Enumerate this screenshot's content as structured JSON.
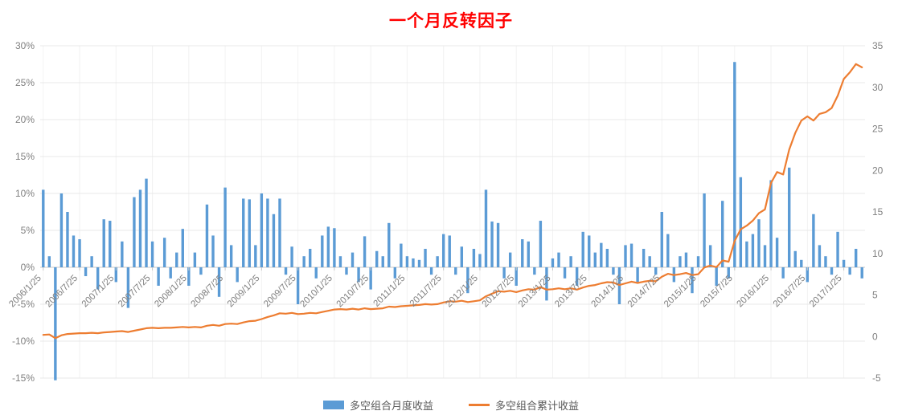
{
  "title": "一个月反转因子",
  "colors": {
    "bar": "#5B9BD5",
    "line": "#ED7D31",
    "title": "#FF0000",
    "axis_text": "#7F7F7F",
    "grid": "#E8E8E8",
    "vgrid": "#F2F2F2",
    "zero_line": "#C9C9C9",
    "legend_text": "#595959"
  },
  "chart_data": {
    "type": "bar+line",
    "title": "一个月反转因子",
    "x_tick_labels": [
      "2006/1/25",
      "2006/7/25",
      "2007/1/25",
      "2007/7/25",
      "2008/1/25",
      "2008/7/25",
      "2009/1/25",
      "2009/7/25",
      "2010/1/25",
      "2010/7/25",
      "2011/1/25",
      "2011/7/25",
      "2012/1/25",
      "2012/7/25",
      "2013/1/25",
      "2013/7/25",
      "2014/1/25",
      "2014/7/25",
      "2015/1/25",
      "2015/7/25",
      "2016/1/25",
      "2016/7/25",
      "2017/1/25"
    ],
    "x_tick_every_n_months": 6,
    "n_points": 136,
    "y_left": {
      "min": -15,
      "max": 30,
      "tick_values": [
        30,
        25,
        20,
        15,
        10,
        5,
        0,
        -5,
        -10,
        -15
      ],
      "tick_labels": [
        "30%",
        "25%",
        "20%",
        "15%",
        "10%",
        "5%",
        "0%",
        "-5%",
        "-10%",
        "-15%"
      ]
    },
    "y_right": {
      "min": -5,
      "max": 35,
      "tick_values": [
        35,
        30,
        25,
        20,
        15,
        10,
        5,
        0,
        -5
      ],
      "tick_labels": [
        "35",
        "30",
        "25",
        "20",
        "15",
        "10",
        "5",
        "0",
        "-5"
      ]
    },
    "legend_position": "bottom",
    "grid": "horizontal",
    "series": [
      {
        "name": "多空组合月度收益",
        "type": "bar",
        "axis": "left",
        "unit": "%",
        "values": [
          10.5,
          1.5,
          -15.3,
          10.0,
          7.5,
          4.3,
          3.8,
          -1.2,
          1.5,
          -3.0,
          6.5,
          6.3,
          -2.0,
          3.5,
          -5.5,
          9.5,
          10.5,
          12.0,
          3.5,
          -2.5,
          4.0,
          -1.5,
          2.0,
          5.2,
          -2.5,
          2.0,
          -1.0,
          8.5,
          4.3,
          -4.0,
          10.8,
          3.0,
          -2.0,
          9.3,
          9.2,
          3.0,
          10.0,
          9.3,
          7.2,
          9.3,
          -1.0,
          2.8,
          -5.0,
          1.5,
          2.5,
          -1.5,
          4.3,
          5.5,
          5.3,
          1.5,
          -1.0,
          2.0,
          -2.0,
          4.2,
          -3.0,
          2.2,
          1.5,
          6.0,
          -1.5,
          3.2,
          1.5,
          1.2,
          1.0,
          2.5,
          -1.0,
          1.5,
          4.5,
          4.3,
          -1.0,
          2.8,
          -3.5,
          2.5,
          1.8,
          10.5,
          6.2,
          6.0,
          -1.5,
          2.0,
          -2.5,
          3.8,
          3.5,
          -1.0,
          6.3,
          -4.5,
          1.2,
          2.0,
          -1.5,
          1.5,
          -2.5,
          4.8,
          4.3,
          2.0,
          3.3,
          2.5,
          -1.0,
          -5.0,
          3.0,
          3.2,
          -2.0,
          2.5,
          1.5,
          -1.0,
          7.5,
          4.5,
          -2.0,
          1.5,
          2.0,
          -3.5,
          1.5,
          10.0,
          3.0,
          -2.5,
          9.0,
          -1.5,
          27.8,
          12.2,
          3.5,
          4.5,
          6.5,
          3.0,
          11.8,
          4.0,
          -1.5,
          13.5,
          2.2,
          1.0,
          -2.0,
          7.2,
          3.0,
          1.5,
          -1.0,
          4.8,
          1.0,
          -1.0,
          2.5,
          -1.5
        ]
      },
      {
        "name": "多空组合累计收益",
        "type": "line",
        "axis": "right",
        "values": [
          0.2,
          0.25,
          -0.2,
          0.15,
          0.3,
          0.35,
          0.4,
          0.4,
          0.45,
          0.4,
          0.5,
          0.55,
          0.6,
          0.65,
          0.55,
          0.7,
          0.85,
          1.0,
          1.05,
          1.0,
          1.05,
          1.05,
          1.1,
          1.15,
          1.1,
          1.15,
          1.1,
          1.3,
          1.4,
          1.3,
          1.5,
          1.55,
          1.5,
          1.7,
          1.85,
          1.9,
          2.1,
          2.35,
          2.55,
          2.8,
          2.75,
          2.85,
          2.7,
          2.75,
          2.85,
          2.8,
          2.95,
          3.1,
          3.25,
          3.3,
          3.25,
          3.35,
          3.25,
          3.4,
          3.3,
          3.35,
          3.4,
          3.6,
          3.55,
          3.65,
          3.7,
          3.75,
          3.8,
          3.9,
          3.85,
          3.9,
          4.1,
          4.25,
          4.2,
          4.3,
          4.15,
          4.25,
          4.35,
          4.85,
          5.15,
          5.45,
          5.4,
          5.5,
          5.35,
          5.55,
          5.7,
          5.65,
          5.95,
          5.65,
          5.7,
          5.8,
          5.7,
          5.8,
          5.65,
          5.9,
          6.1,
          6.2,
          6.4,
          6.55,
          6.5,
          6.2,
          6.4,
          6.6,
          6.45,
          6.6,
          6.7,
          6.65,
          7.2,
          7.55,
          7.4,
          7.5,
          7.65,
          7.4,
          7.5,
          8.3,
          8.55,
          8.35,
          9.15,
          9.0,
          11.5,
          12.9,
          13.35,
          13.95,
          14.85,
          15.3,
          18.5,
          19.8,
          19.5,
          22.5,
          24.5,
          26.0,
          26.5,
          26.0,
          26.8,
          27.0,
          27.5,
          29.0,
          31.0,
          31.8,
          32.8,
          32.4
        ]
      }
    ]
  }
}
